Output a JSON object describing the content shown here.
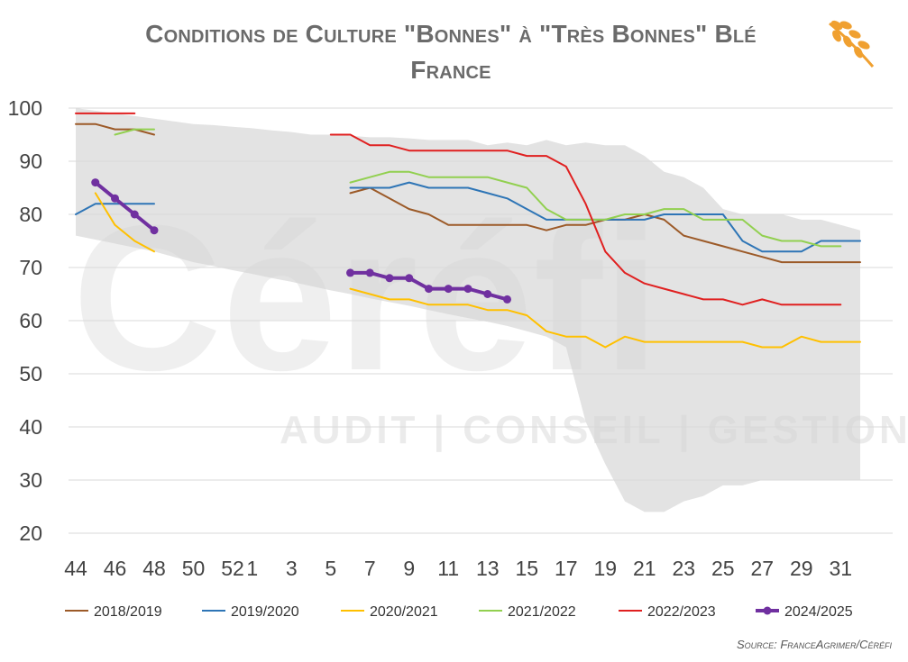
{
  "title_lines": [
    "Conditions de Culture \"Bonnes\" à \"Très Bonnes\" Blé",
    "France"
  ],
  "source": "Source: FranceAgrimer/Céréfi",
  "watermark": {
    "brand": "Céréfi",
    "tagline": "AUDIT | CONSEIL | GESTION"
  },
  "logo_icon": "wheat-icon",
  "colors": {
    "band": "#e3e3e3",
    "grid": "#d9d9d9",
    "accent": "#f0a030",
    "s2018": "#9c5a28",
    "s2019": "#2e75b6",
    "s2020": "#ffc000",
    "s2021": "#92d050",
    "s2022": "#e02020",
    "s2024": "#7030a0"
  },
  "chart_data": {
    "type": "line",
    "title": "Conditions de Culture \"Bonnes\" à \"Très Bonnes\" Blé France",
    "xlabel": "",
    "ylabel": "",
    "x_categories": [
      44,
      45,
      46,
      47,
      48,
      49,
      50,
      51,
      52,
      1,
      2,
      3,
      4,
      5,
      6,
      7,
      8,
      9,
      10,
      11,
      12,
      13,
      14,
      15,
      16,
      17,
      18,
      19,
      20,
      21,
      22,
      23,
      24,
      25,
      26,
      27,
      28,
      29,
      30,
      31,
      32
    ],
    "x_tick_labels": [
      "44",
      "46",
      "48",
      "50",
      "52",
      "1",
      "3",
      "5",
      "7",
      "9",
      "11",
      "13",
      "15",
      "17",
      "19",
      "21",
      "23",
      "25",
      "27",
      "29",
      "31"
    ],
    "ylim": [
      20,
      100
    ],
    "y_ticks": [
      20,
      30,
      40,
      50,
      60,
      70,
      80,
      90,
      100
    ],
    "grid": true,
    "legend_position": "bottom",
    "range_band": {
      "x": [
        44,
        48,
        49,
        50,
        51,
        52,
        1,
        2,
        3,
        4,
        5,
        6,
        7,
        8,
        9,
        10,
        11,
        12,
        13,
        14,
        15,
        16,
        17,
        18,
        19,
        20,
        21,
        22,
        23,
        24,
        25,
        26,
        27,
        28,
        29,
        30,
        31,
        32
      ],
      "upper": [
        100,
        98,
        97.5,
        97,
        96.8,
        96.5,
        96.2,
        95.8,
        95.5,
        95,
        95,
        94.8,
        94.5,
        94.5,
        94.3,
        94,
        94,
        94,
        93,
        93.5,
        93,
        94,
        93,
        93.5,
        93,
        93,
        91,
        88,
        87,
        85,
        81,
        80,
        80,
        80,
        79,
        79,
        78,
        77
      ],
      "lower": [
        76,
        73,
        72,
        71,
        70.3,
        69.5,
        68.8,
        68,
        67.3,
        66.5,
        65.7,
        65,
        64.2,
        63.5,
        62.8,
        62,
        61.2,
        60.5,
        59.8,
        59,
        58,
        57,
        55,
        41,
        33,
        26,
        24,
        24,
        26,
        27,
        29,
        29,
        30,
        30,
        30,
        30,
        30,
        30
      ]
    },
    "series": [
      {
        "name": "2018/2019",
        "color": "#9c5a28",
        "x": [
          44,
          45,
          46,
          47,
          48
        ],
        "values": [
          97,
          97,
          96,
          96,
          95
        ]
      },
      {
        "name": "2018/2019",
        "color": "#9c5a28",
        "x": [
          6,
          7,
          8,
          9,
          10,
          11,
          12,
          13,
          14,
          15,
          16,
          17,
          18,
          19,
          20,
          21,
          22,
          23,
          24,
          25,
          26,
          27,
          28,
          29,
          30,
          31,
          32
        ],
        "values": [
          84,
          85,
          83,
          81,
          80,
          78,
          78,
          78,
          78,
          78,
          77,
          78,
          78,
          79,
          79,
          80,
          79,
          76,
          75,
          74,
          73,
          72,
          71,
          71,
          71,
          71,
          71
        ]
      },
      {
        "name": "2019/2020",
        "color": "#2e75b6",
        "x": [
          44,
          45,
          46,
          47,
          48
        ],
        "values": [
          80,
          82,
          82,
          82,
          82
        ]
      },
      {
        "name": "2019/2020",
        "color": "#2e75b6",
        "x": [
          6,
          7,
          8,
          9,
          10,
          11,
          12,
          13,
          14,
          15,
          16,
          17,
          18,
          19,
          20,
          21,
          22,
          23,
          24,
          25,
          26,
          27,
          28,
          29,
          30,
          31,
          32
        ],
        "values": [
          85,
          85,
          85,
          86,
          85,
          85,
          85,
          84,
          83,
          81,
          79,
          79,
          79,
          79,
          79,
          79,
          80,
          80,
          80,
          80,
          75,
          73,
          73,
          73,
          75,
          75,
          75
        ]
      },
      {
        "name": "2020/2021",
        "color": "#ffc000",
        "x": [
          45,
          46,
          47,
          48
        ],
        "values": [
          84,
          78,
          75,
          73
        ]
      },
      {
        "name": "2020/2021",
        "color": "#ffc000",
        "x": [
          6,
          7,
          8,
          9,
          10,
          11,
          12,
          13,
          14,
          15,
          16,
          17,
          18,
          19,
          20,
          21,
          22,
          23,
          24,
          25,
          26,
          27,
          28,
          29,
          30,
          31,
          32
        ],
        "values": [
          66,
          65,
          64,
          64,
          63,
          63,
          63,
          62,
          62,
          61,
          58,
          57,
          57,
          55,
          57,
          56,
          56,
          56,
          56,
          56,
          56,
          55,
          55,
          57,
          56,
          56,
          56
        ]
      },
      {
        "name": "2021/2022",
        "color": "#92d050",
        "x": [
          46,
          47,
          48
        ],
        "values": [
          95,
          96,
          96
        ]
      },
      {
        "name": "2021/2022",
        "color": "#92d050",
        "x": [
          6,
          7,
          8,
          9,
          10,
          11,
          12,
          13,
          14,
          15,
          16,
          17,
          18,
          19,
          20,
          21,
          22,
          23,
          24,
          25,
          26,
          27,
          28,
          29,
          30,
          31
        ],
        "values": [
          86,
          87,
          88,
          88,
          87,
          87,
          87,
          87,
          86,
          85,
          81,
          79,
          79,
          79,
          80,
          80,
          81,
          81,
          79,
          79,
          79,
          76,
          75,
          75,
          74,
          74
        ]
      },
      {
        "name": "2022/2023",
        "color": "#e02020",
        "x": [
          44,
          45,
          46,
          47
        ],
        "values": [
          99,
          99,
          99,
          99
        ]
      },
      {
        "name": "2022/2023",
        "color": "#e02020",
        "x": [
          5,
          6,
          7,
          8,
          9,
          10,
          11,
          12,
          13,
          14,
          15,
          16,
          17,
          18,
          19,
          20,
          21,
          22,
          23,
          24,
          25,
          26,
          27,
          28,
          29,
          30,
          31
        ],
        "values": [
          95,
          95,
          93,
          93,
          92,
          92,
          92,
          92,
          92,
          92,
          91,
          91,
          89,
          82,
          73,
          69,
          67,
          66,
          65,
          64,
          64,
          63,
          64,
          63,
          63,
          63,
          63
        ]
      },
      {
        "name": "2024/2025",
        "color": "#7030a0",
        "markers": true,
        "x": [
          45,
          46,
          47,
          48
        ],
        "values": [
          86,
          83,
          80,
          77
        ]
      },
      {
        "name": "2024/2025",
        "color": "#7030a0",
        "markers": true,
        "x": [
          6,
          7,
          8,
          9,
          10,
          11,
          12,
          13,
          14
        ],
        "values": [
          69,
          69,
          68,
          68,
          66,
          66,
          66,
          65,
          64
        ]
      }
    ],
    "legend": [
      {
        "name": "2018/2019",
        "color": "#9c5a28",
        "markers": false
      },
      {
        "name": "2019/2020",
        "color": "#2e75b6",
        "markers": false
      },
      {
        "name": "2020/2021",
        "color": "#ffc000",
        "markers": false
      },
      {
        "name": "2021/2022",
        "color": "#92d050",
        "markers": false
      },
      {
        "name": "2022/2023",
        "color": "#e02020",
        "markers": false
      },
      {
        "name": "2024/2025",
        "color": "#7030a0",
        "markers": true
      }
    ]
  }
}
